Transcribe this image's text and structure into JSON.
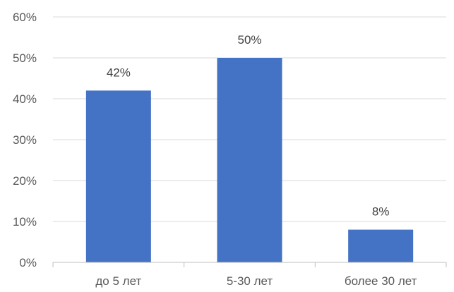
{
  "chart_data": {
    "type": "bar",
    "categories": [
      "до 5 лет",
      "5-30 лет",
      "более 30 лет"
    ],
    "values": [
      42,
      50,
      8
    ],
    "data_labels": [
      "42%",
      "50%",
      "8%"
    ],
    "title": "",
    "xlabel": "",
    "ylabel": "",
    "ylim": [
      0,
      60
    ],
    "yticks": [
      0,
      10,
      20,
      30,
      40,
      50,
      60
    ],
    "ytick_labels": [
      "0%",
      "10%",
      "20%",
      "30%",
      "40%",
      "50%",
      "60%"
    ],
    "grid": true,
    "legend": "none",
    "bar_color": "#4472C4"
  }
}
